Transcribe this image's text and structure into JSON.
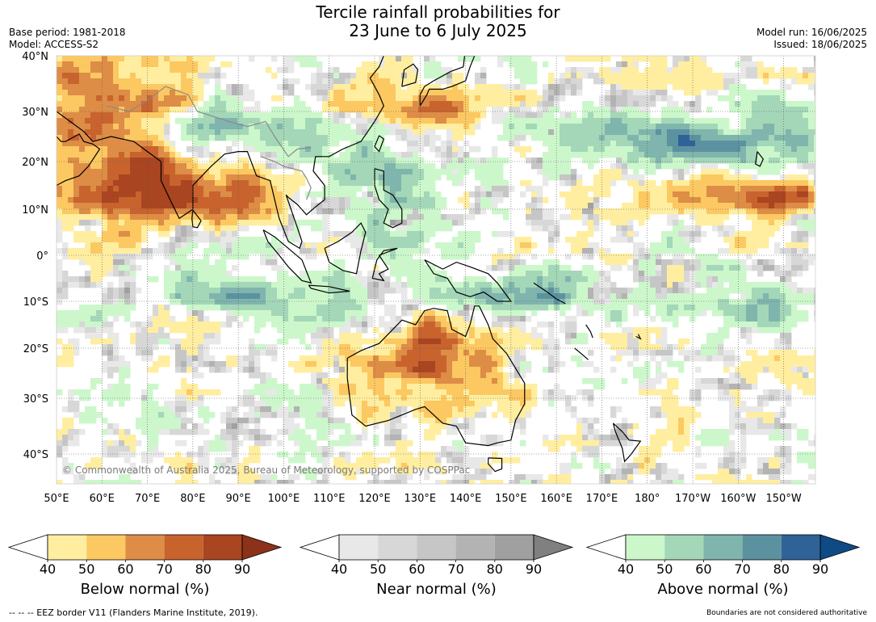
{
  "title_line1": "Tercile rainfall probabilities for",
  "title_line2": "23 June to 6 July 2025",
  "meta_left": [
    "Base period: 1981-2018",
    "Model: ACCESS-S2"
  ],
  "meta_right": [
    "Model run: 16/06/2025",
    "Issued: 18/06/2025"
  ],
  "lat_labels": [
    "40°N",
    "30°N",
    "20°N",
    "10°N",
    "0°",
    "10°S",
    "20°S",
    "30°S",
    "40°S"
  ],
  "lon_labels": [
    "50°E",
    "60°E",
    "70°E",
    "80°E",
    "90°E",
    "100°E",
    "110°E",
    "120°E",
    "130°E",
    "140°E",
    "150°E",
    "160°E",
    "170°E",
    "180°",
    "170°W",
    "160°W",
    "150°W"
  ],
  "copyright": "© Commonwealth of Australia 2025, Bureau of Meteorology, supported by COSPPac",
  "colorbars": [
    {
      "title": "Below normal (%)",
      "ticks": [
        "40",
        "50",
        "60",
        "70",
        "80",
        "90"
      ],
      "colors": [
        "#ffeea0",
        "#fcc862",
        "#dd8d46",
        "#c8632e",
        "#a94520"
      ],
      "under": "#ffffff",
      "over": "#8c321a"
    },
    {
      "title": "Near normal (%)",
      "ticks": [
        "40",
        "50",
        "60",
        "70",
        "80",
        "90"
      ],
      "colors": [
        "#e8e8e8",
        "#d7d7d7",
        "#c6c6c6",
        "#b3b3b3",
        "#a0a0a0"
      ],
      "under": "#ffffff",
      "over": "#808080"
    },
    {
      "title": "Above normal (%)",
      "ticks": [
        "40",
        "50",
        "60",
        "70",
        "80",
        "90"
      ],
      "colors": [
        "#ccf7cb",
        "#a3d7b8",
        "#7fb5ad",
        "#5c92a0",
        "#2f6397"
      ],
      "under": "#ffffff",
      "over": "#0f4a84"
    }
  ],
  "footer_left": "--  --  -- EEZ border V11 (Flanders Marine Institute, 2019).",
  "footer_right": "Boundaries are not considered authoritative"
}
